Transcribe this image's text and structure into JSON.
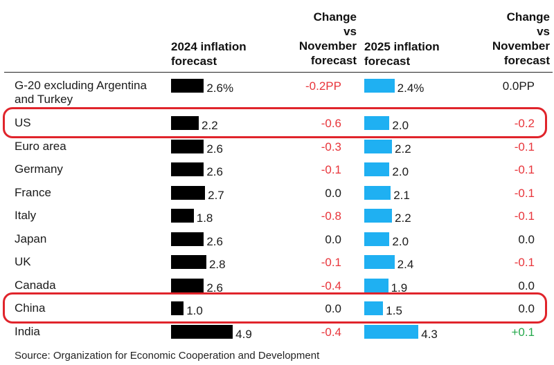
{
  "chart_data": {
    "type": "table",
    "columns": {
      "country": "",
      "forecast_2024": "2024 inflation forecast",
      "change_2024": "Change vs November forecast",
      "forecast_2025": "2025 inflation forecast",
      "change_2025": "Change vs November forecast"
    },
    "rows": [
      {
        "country": "G-20 excluding Argentina and Turkey",
        "v2024": 2.6,
        "v2024_label": "2.6%",
        "c2024": "-0.2PP",
        "v2025": 2.4,
        "v2025_label": "2.4%",
        "c2025": "0.0PP",
        "highlight": false
      },
      {
        "country": "US",
        "v2024": 2.2,
        "v2024_label": "2.2",
        "c2024": "-0.6",
        "v2025": 2.0,
        "v2025_label": "2.0",
        "c2025": "-0.2",
        "highlight": true
      },
      {
        "country": "Euro area",
        "v2024": 2.6,
        "v2024_label": "2.6",
        "c2024": "-0.3",
        "v2025": 2.2,
        "v2025_label": "2.2",
        "c2025": "-0.1",
        "highlight": false
      },
      {
        "country": "Germany",
        "v2024": 2.6,
        "v2024_label": "2.6",
        "c2024": "-0.1",
        "v2025": 2.0,
        "v2025_label": "2.0",
        "c2025": "-0.1",
        "highlight": false
      },
      {
        "country": "France",
        "v2024": 2.7,
        "v2024_label": "2.7",
        "c2024": "0.0",
        "v2025": 2.1,
        "v2025_label": "2.1",
        "c2025": "-0.1",
        "highlight": false
      },
      {
        "country": "Italy",
        "v2024": 1.8,
        "v2024_label": "1.8",
        "c2024": "-0.8",
        "v2025": 2.2,
        "v2025_label": "2.2",
        "c2025": "-0.1",
        "highlight": false
      },
      {
        "country": "Japan",
        "v2024": 2.6,
        "v2024_label": "2.6",
        "c2024": "0.0",
        "v2025": 2.0,
        "v2025_label": "2.0",
        "c2025": "0.0",
        "highlight": false
      },
      {
        "country": "UK",
        "v2024": 2.8,
        "v2024_label": "2.8",
        "c2024": "-0.1",
        "v2025": 2.4,
        "v2025_label": "2.4",
        "c2025": "-0.1",
        "highlight": false
      },
      {
        "country": "Canada",
        "v2024": 2.6,
        "v2024_label": "2.6",
        "c2024": "-0.4",
        "v2025": 1.9,
        "v2025_label": "1.9",
        "c2025": "0.0",
        "highlight": false
      },
      {
        "country": "China",
        "v2024": 1.0,
        "v2024_label": "1.0",
        "c2024": "0.0",
        "v2025": 1.5,
        "v2025_label": "1.5",
        "c2025": "0.0",
        "highlight": true
      },
      {
        "country": "India",
        "v2024": 4.9,
        "v2024_label": "4.9",
        "c2024": "-0.4",
        "v2025": 4.3,
        "v2025_label": "4.3",
        "c2025": "+0.1",
        "highlight": false
      }
    ],
    "source": "Source: Organization for Economic Cooperation and Development"
  },
  "colors": {
    "bar_2024": "#000000",
    "bar_2025": "#1fb0f2",
    "negative": "#e8343a",
    "neutral": "#1a1a1a",
    "positive": "#24a84b",
    "highlight_border": "#e0242b"
  }
}
